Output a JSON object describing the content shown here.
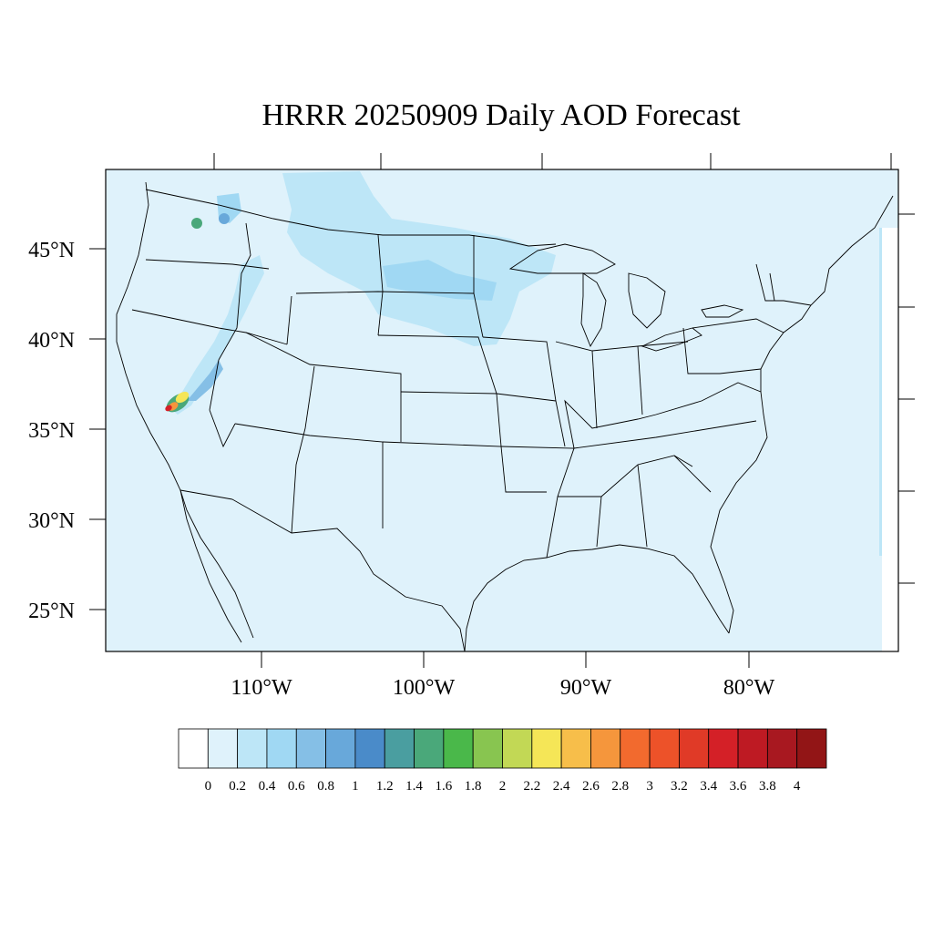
{
  "title": "HRRR 20250909 Daily AOD Forecast",
  "map": {
    "background_color": "#dff2fb",
    "lat_labels": [
      "45°N",
      "40°N",
      "35°N",
      "30°N",
      "25°N"
    ],
    "lon_labels": [
      "110°W",
      "100°W",
      "90°W",
      "80°W"
    ]
  },
  "colorbar": {
    "colors": [
      "#ffffff",
      "#dff2fb",
      "#bde6f7",
      "#a0d8f3",
      "#85bfe6",
      "#68a8da",
      "#4a8bc9",
      "#4a9ea0",
      "#4aa87a",
      "#4ab84a",
      "#88c550",
      "#c2d855",
      "#f5e657",
      "#f7be4a",
      "#f5963c",
      "#f26a2e",
      "#ed5229",
      "#e03a27",
      "#d42027",
      "#be1a23",
      "#a81820",
      "#921516"
    ],
    "labels": [
      "0",
      "0.2",
      "0.4",
      "0.6",
      "0.8",
      "1",
      "1.2",
      "1.4",
      "1.6",
      "1.8",
      "2",
      "2.2",
      "2.4",
      "2.6",
      "2.8",
      "3",
      "3.2",
      "3.4",
      "3.6",
      "3.8",
      "4"
    ]
  }
}
